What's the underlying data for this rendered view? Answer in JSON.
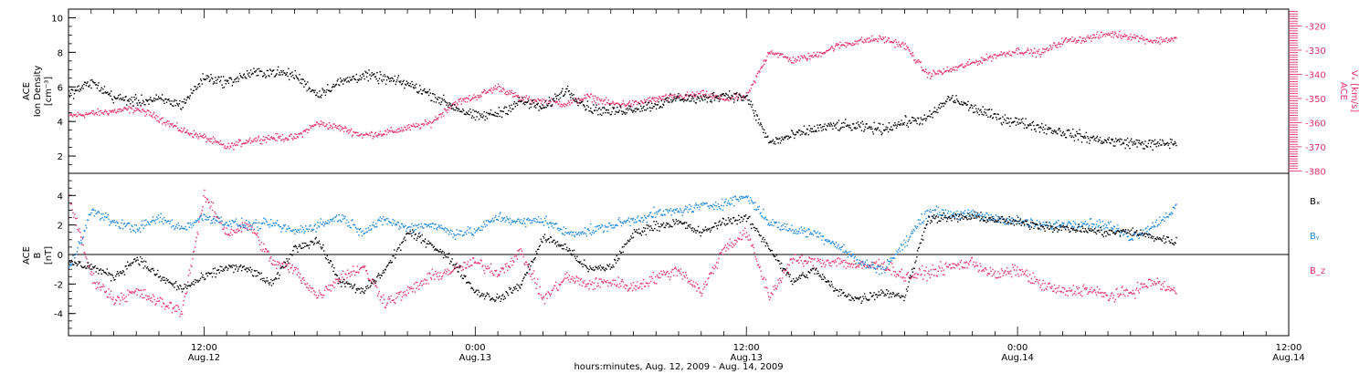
{
  "colors": {
    "black": "#000000",
    "red": "#e8336a",
    "blue": "#1f87e0"
  },
  "time_axis": {
    "start_hours": 0,
    "end_hours": 54,
    "major_ticks": [
      {
        "hours": 6,
        "time": "12:00",
        "date": "Aug.12"
      },
      {
        "hours": 18,
        "time": "0:00",
        "date": "Aug.13"
      },
      {
        "hours": 30,
        "time": "12:00",
        "date": "Aug.13"
      },
      {
        "hours": 42,
        "time": "0:00",
        "date": "Aug.14"
      },
      {
        "hours": 54,
        "time": "12:00",
        "date": "Aug.14"
      }
    ],
    "label": "hours:minutes, Aug. 12, 2009 - Aug. 14, 2009"
  },
  "chart_data": [
    {
      "type": "scatter",
      "panel": "top",
      "ylabel_left": [
        "ACE",
        "Ion Density",
        "[cm⁻³]"
      ],
      "ylabel_right": [
        "ACE",
        "Vₓ [km/s]"
      ],
      "ylim_left": [
        1,
        10.5
      ],
      "yticks_left": [
        2,
        4,
        6,
        8,
        10
      ],
      "ylim_right": [
        -381,
        -313
      ],
      "yticks_right": [
        -320,
        -330,
        -340,
        -350,
        -360,
        -370,
        -380
      ],
      "series": [
        {
          "color": "black",
          "axis": "left",
          "anchors": [
            [
              0,
              5.6
            ],
            [
              1,
              6.3
            ],
            [
              2,
              5.4
            ],
            [
              3,
              5.2
            ],
            [
              4,
              5.3
            ],
            [
              5,
              5.0
            ],
            [
              6,
              6.6
            ],
            [
              7,
              6.3
            ],
            [
              8,
              6.8
            ],
            [
              9,
              6.9
            ],
            [
              10,
              6.7
            ],
            [
              11,
              5.6
            ],
            [
              12,
              6.3
            ],
            [
              13,
              6.7
            ],
            [
              14,
              6.5
            ],
            [
              15,
              6.2
            ],
            [
              16,
              5.6
            ],
            [
              17,
              4.9
            ],
            [
              18,
              4.3
            ],
            [
              19,
              4.5
            ],
            [
              20,
              5.2
            ],
            [
              21,
              4.8
            ],
            [
              22,
              5.9
            ],
            [
              23,
              4.8
            ],
            [
              24,
              4.6
            ],
            [
              25,
              4.8
            ],
            [
              26,
              5.0
            ],
            [
              27,
              5.4
            ],
            [
              28,
              5.3
            ],
            [
              29,
              5.6
            ],
            [
              30,
              5.4
            ],
            [
              31,
              2.8
            ],
            [
              32,
              3.2
            ],
            [
              33,
              3.6
            ],
            [
              34,
              3.8
            ],
            [
              35,
              3.7
            ],
            [
              36,
              3.6
            ],
            [
              37,
              4.0
            ],
            [
              38,
              4.2
            ],
            [
              39,
              5.4
            ],
            [
              40,
              4.8
            ],
            [
              41,
              4.3
            ],
            [
              42,
              4.0
            ],
            [
              43,
              3.7
            ],
            [
              44,
              3.4
            ],
            [
              45,
              3.1
            ],
            [
              46,
              2.9
            ],
            [
              47,
              2.8
            ],
            [
              48,
              2.7
            ],
            [
              49,
              2.8
            ]
          ],
          "noise": 0.45,
          "end_hours": 49
        },
        {
          "color": "red",
          "axis": "right",
          "anchors": [
            [
              0,
              -357
            ],
            [
              1,
              -356
            ],
            [
              2,
              -355
            ],
            [
              3,
              -354
            ],
            [
              4,
              -358
            ],
            [
              5,
              -363
            ],
            [
              6,
              -366
            ],
            [
              7,
              -370
            ],
            [
              8,
              -367
            ],
            [
              9,
              -366
            ],
            [
              10,
              -366
            ],
            [
              11,
              -360
            ],
            [
              12,
              -362
            ],
            [
              13,
              -365
            ],
            [
              14,
              -364
            ],
            [
              15,
              -362
            ],
            [
              16,
              -360
            ],
            [
              17,
              -352
            ],
            [
              18,
              -349
            ],
            [
              19,
              -345
            ],
            [
              20,
              -350
            ],
            [
              21,
              -351
            ],
            [
              22,
              -352
            ],
            [
              23,
              -349
            ],
            [
              24,
              -352
            ],
            [
              25,
              -352
            ],
            [
              26,
              -350
            ],
            [
              27,
              -349
            ],
            [
              28,
              -348
            ],
            [
              29,
              -350
            ],
            [
              30,
              -349
            ],
            [
              31,
              -330
            ],
            [
              32,
              -334
            ],
            [
              33,
              -332
            ],
            [
              34,
              -328
            ],
            [
              35,
              -326
            ],
            [
              36,
              -325
            ],
            [
              37,
              -328
            ],
            [
              38,
              -340
            ],
            [
              39,
              -338
            ],
            [
              40,
              -335
            ],
            [
              41,
              -332
            ],
            [
              42,
              -330
            ],
            [
              43,
              -331
            ],
            [
              44,
              -326
            ],
            [
              45,
              -325
            ],
            [
              46,
              -323
            ],
            [
              47,
              -324
            ],
            [
              48,
              -326
            ],
            [
              49,
              -325
            ]
          ],
          "noise": 2.2,
          "end_hours": 49
        }
      ]
    },
    {
      "type": "scatter",
      "panel": "bottom",
      "ylabel_left": [
        "ACE",
        "B",
        "[nT]"
      ],
      "ylim": [
        -5.5,
        5.5
      ],
      "yticks": [
        4,
        2,
        0,
        -2,
        -4
      ],
      "zero_line": true,
      "series": [
        {
          "name": "Bₓ",
          "color": "black",
          "anchors": [
            [
              0,
              -0.5
            ],
            [
              1,
              -0.8
            ],
            [
              2,
              -1.5
            ],
            [
              3,
              -0.2
            ],
            [
              4,
              -1.5
            ],
            [
              5,
              -2.3
            ],
            [
              6,
              -1.5
            ],
            [
              7,
              -0.8
            ],
            [
              8,
              -1.0
            ],
            [
              9,
              -2.0
            ],
            [
              10,
              0.5
            ],
            [
              11,
              1.0
            ],
            [
              12,
              -1.8
            ],
            [
              13,
              -2.5
            ],
            [
              14,
              -1.0
            ],
            [
              15,
              1.5
            ],
            [
              16,
              0.8
            ],
            [
              17,
              -0.5
            ],
            [
              18,
              -2.5
            ],
            [
              19,
              -3.0
            ],
            [
              20,
              -2.0
            ],
            [
              21,
              1.2
            ],
            [
              22,
              0.5
            ],
            [
              23,
              -1.0
            ],
            [
              24,
              -0.8
            ],
            [
              25,
              1.5
            ],
            [
              26,
              2.0
            ],
            [
              27,
              2.2
            ],
            [
              28,
              1.5
            ],
            [
              29,
              2.3
            ],
            [
              30,
              2.5
            ],
            [
              31,
              0.5
            ],
            [
              32,
              -1.8
            ],
            [
              33,
              -1.0
            ],
            [
              34,
              -2.5
            ],
            [
              35,
              -3.0
            ],
            [
              36,
              -2.5
            ],
            [
              37,
              -2.8
            ],
            [
              38,
              2.5
            ],
            [
              39,
              2.5
            ],
            [
              40,
              2.6
            ],
            [
              41,
              2.4
            ],
            [
              42,
              2.2
            ],
            [
              43,
              2.0
            ],
            [
              44,
              1.8
            ],
            [
              45,
              1.7
            ],
            [
              46,
              1.5
            ],
            [
              47,
              1.6
            ],
            [
              48,
              1.2
            ],
            [
              49,
              0.9
            ]
          ],
          "noise": 0.45,
          "end_hours": 49
        },
        {
          "name": "Bᵧ",
          "color": "blue",
          "anchors": [
            [
              0,
              -1.0
            ],
            [
              1,
              3.0
            ],
            [
              2,
              2.2
            ],
            [
              3,
              1.8
            ],
            [
              4,
              2.5
            ],
            [
              5,
              1.8
            ],
            [
              6,
              2.6
            ],
            [
              7,
              2.2
            ],
            [
              8,
              2.0
            ],
            [
              9,
              2.1
            ],
            [
              10,
              1.6
            ],
            [
              11,
              2.0
            ],
            [
              12,
              2.6
            ],
            [
              13,
              1.6
            ],
            [
              14,
              2.4
            ],
            [
              15,
              1.8
            ],
            [
              16,
              2.1
            ],
            [
              17,
              1.5
            ],
            [
              18,
              1.6
            ],
            [
              19,
              2.6
            ],
            [
              20,
              2.2
            ],
            [
              21,
              2.4
            ],
            [
              22,
              1.5
            ],
            [
              23,
              1.6
            ],
            [
              24,
              2.0
            ],
            [
              25,
              2.4
            ],
            [
              26,
              2.8
            ],
            [
              27,
              3.0
            ],
            [
              28,
              3.3
            ],
            [
              29,
              3.5
            ],
            [
              30,
              4.0
            ],
            [
              31,
              2.2
            ],
            [
              32,
              1.7
            ],
            [
              33,
              1.5
            ],
            [
              34,
              0.7
            ],
            [
              35,
              -0.5
            ],
            [
              36,
              -1.0
            ],
            [
              37,
              0.8
            ],
            [
              38,
              3.0
            ],
            [
              39,
              2.8
            ],
            [
              40,
              2.7
            ],
            [
              41,
              2.5
            ],
            [
              42,
              2.3
            ],
            [
              43,
              2.0
            ],
            [
              44,
              2.1
            ],
            [
              45,
              2.2
            ],
            [
              46,
              2.0
            ],
            [
              47,
              1.2
            ],
            [
              48,
              2.0
            ],
            [
              49,
              3.2
            ]
          ],
          "noise": 0.5,
          "end_hours": 49
        },
        {
          "name": "B_z",
          "color": "red",
          "anchors": [
            [
              0,
              4.0
            ],
            [
              1,
              -1.5
            ],
            [
              2,
              -3.0
            ],
            [
              3,
              -2.5
            ],
            [
              4,
              -3.2
            ],
            [
              5,
              -3.8
            ],
            [
              6,
              4.0
            ],
            [
              7,
              1.5
            ],
            [
              8,
              2.0
            ],
            [
              9,
              -0.5
            ],
            [
              10,
              -1.0
            ],
            [
              11,
              -2.8
            ],
            [
              12,
              -1.5
            ],
            [
              13,
              -0.8
            ],
            [
              14,
              -3.2
            ],
            [
              15,
              -2.5
            ],
            [
              16,
              -1.5
            ],
            [
              17,
              -1.0
            ],
            [
              18,
              -0.5
            ],
            [
              19,
              -1.2
            ],
            [
              20,
              0.2
            ],
            [
              21,
              -3.0
            ],
            [
              22,
              -1.5
            ],
            [
              23,
              -2.0
            ],
            [
              24,
              -1.8
            ],
            [
              25,
              -2.2
            ],
            [
              26,
              -1.5
            ],
            [
              27,
              -1.0
            ],
            [
              28,
              -2.5
            ],
            [
              29,
              0.5
            ],
            [
              30,
              1.5
            ],
            [
              31,
              -2.8
            ],
            [
              32,
              -0.3
            ],
            [
              33,
              -0.5
            ],
            [
              34,
              -0.4
            ],
            [
              35,
              -0.8
            ],
            [
              36,
              -0.6
            ],
            [
              37,
              -1.5
            ],
            [
              38,
              -1.2
            ],
            [
              39,
              -0.8
            ],
            [
              40,
              -0.5
            ],
            [
              41,
              -1.4
            ],
            [
              42,
              -1.0
            ],
            [
              43,
              -2.0
            ],
            [
              44,
              -2.5
            ],
            [
              45,
              -2.3
            ],
            [
              46,
              -2.8
            ],
            [
              47,
              -2.5
            ],
            [
              48,
              -1.8
            ],
            [
              49,
              -2.5
            ]
          ],
          "noise": 0.6,
          "end_hours": 49
        }
      ]
    }
  ]
}
